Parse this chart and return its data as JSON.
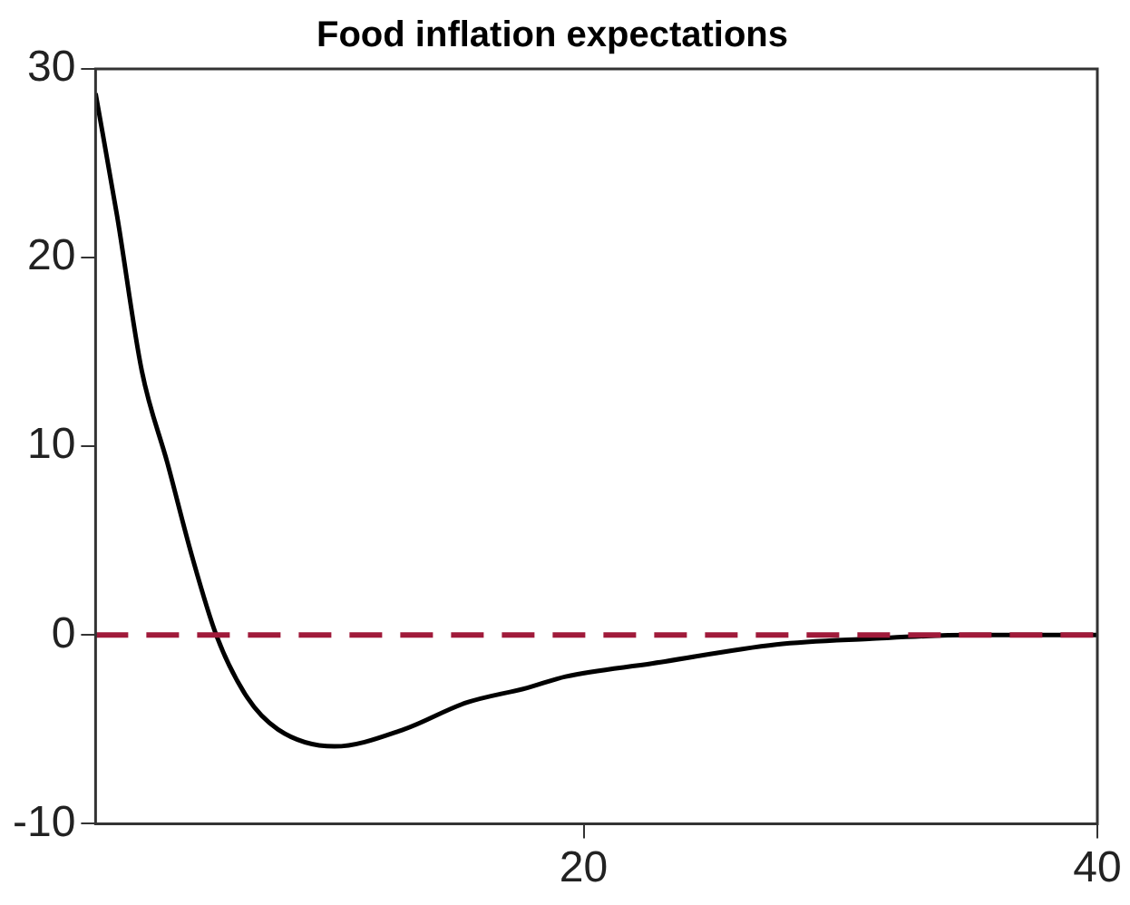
{
  "chart_data": {
    "type": "line",
    "title": "Food inflation expectations",
    "x": [
      1,
      1.84,
      2.8,
      3.8,
      4.75,
      5.7,
      6.9,
      8.1,
      10.3,
      13,
      15.4,
      17.8,
      19.3,
      22.7,
      27.5,
      31.1,
      35,
      40
    ],
    "series": [
      {
        "color": "#000000",
        "values": [
          28.7,
          22.2,
          14,
          9.1,
          4.2,
          0,
          -3.3,
          -5,
          -5.9,
          -5,
          -3.6,
          -2.8,
          -2.2,
          -1.5,
          -0.5,
          -0.2,
          0,
          0
        ]
      }
    ],
    "xlim": [
      1,
      40
    ],
    "xticks": [
      20,
      40
    ],
    "ylim": [
      -10,
      30
    ],
    "yticks": [
      -10,
      0,
      10,
      20,
      30
    ],
    "ref_lines": [
      {
        "axis": "y",
        "value": 0,
        "color": "#a01a3a",
        "line_style": "dashed"
      }
    ],
    "grid": false,
    "legend": false,
    "marker": "none",
    "line_style": "solid"
  }
}
